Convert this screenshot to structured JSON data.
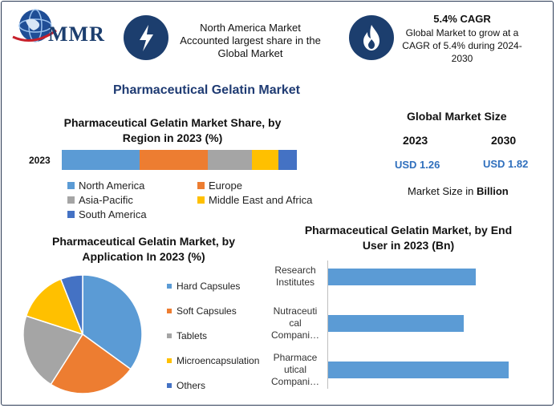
{
  "logo": {
    "text": "MMR",
    "icon": "globe-icon"
  },
  "header": {
    "card1": {
      "icon": "lightning-icon",
      "lines": [
        "North America Market",
        "Accounted largest share in the",
        "Global Market"
      ]
    },
    "card2": {
      "icon": "flame-icon",
      "heading": "5.4% CAGR",
      "lines": [
        "Global Market to grow at a",
        "CAGR of 5.4% during 2024-",
        "2030"
      ]
    }
  },
  "main_title": "Pharmaceutical Gelatin Market",
  "global_size": {
    "title": "Global Market Size",
    "years": [
      "2023",
      "2030"
    ],
    "values": [
      "USD 1.26",
      "USD 1.82"
    ],
    "note_prefix": "Market Size in ",
    "note_bold": "Billion"
  },
  "chart_data": [
    {
      "type": "bar",
      "orientation": "horizontal-stacked",
      "title": "Pharmaceutical Gelatin Market Share, by Region in 2023 (%)",
      "categories": [
        "2023"
      ],
      "series": [
        {
          "name": "North America",
          "values": [
            33
          ],
          "color": "#5b9bd5"
        },
        {
          "name": "Europe",
          "values": [
            29
          ],
          "color": "#ed7d31"
        },
        {
          "name": "Asia-Pacific",
          "values": [
            19
          ],
          "color": "#a5a5a5"
        },
        {
          "name": "Middle East and Africa",
          "values": [
            11
          ],
          "color": "#ffc000"
        },
        {
          "name": "South America",
          "values": [
            8
          ],
          "color": "#4472c4"
        }
      ],
      "legend": "bottom"
    },
    {
      "type": "pie",
      "title": "Pharmaceutical Gelatin Market, by Application In 2023 (%)",
      "labels": [
        "Hard Capsules",
        "Soft Capsules",
        "Tablets",
        "Microencapsulation",
        "Others"
      ],
      "values": [
        35,
        24,
        21,
        14,
        6
      ],
      "colors": [
        "#5b9bd5",
        "#ed7d31",
        "#a5a5a5",
        "#ffc000",
        "#4472c4"
      ],
      "legend": "right"
    },
    {
      "type": "bar",
      "orientation": "horizontal",
      "title": "Pharmaceutical Gelatin Market, by End User in 2023 (Bn)",
      "categories": [
        "Research Institutes",
        "Nutraceutical Compani…",
        "Pharmaceutical Compani…"
      ],
      "category_lines": [
        [
          "Research",
          "Institutes"
        ],
        [
          "Nutraceuti",
          "cal",
          "Compani…"
        ],
        [
          "Pharmace",
          "utical",
          "Compani…"
        ]
      ],
      "values": [
        0.36,
        0.33,
        0.44
      ],
      "color": "#5b9bd5"
    }
  ]
}
